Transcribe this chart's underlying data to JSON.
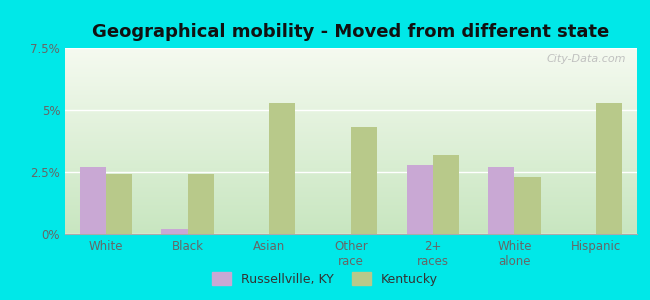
{
  "title": "Geographical mobility - Moved from different state",
  "categories": [
    "White",
    "Black",
    "Asian",
    "Other\nrace",
    "2+\nraces",
    "White\nalone",
    "Hispanic"
  ],
  "russellville": [
    2.7,
    0.2,
    0.0,
    0.0,
    2.8,
    2.7,
    0.0
  ],
  "kentucky": [
    2.4,
    2.4,
    5.3,
    4.3,
    3.2,
    2.3,
    5.3
  ],
  "bar_color_russellville": "#c9a8d4",
  "bar_color_kentucky": "#b8c98a",
  "background_top": "#f0f7e0",
  "background_bottom": "#d0edd8",
  "outer_bg": "#00e8e8",
  "ylim": [
    0,
    7.5
  ],
  "yticks": [
    0,
    2.5,
    5.0,
    7.5
  ],
  "ytick_labels": [
    "0%",
    "2.5%",
    "5%",
    "7.5%"
  ],
  "legend_russellville": "Russellville, KY",
  "legend_kentucky": "Kentucky",
  "bar_width": 0.32,
  "title_fontsize": 13,
  "watermark": "City-Data.com"
}
